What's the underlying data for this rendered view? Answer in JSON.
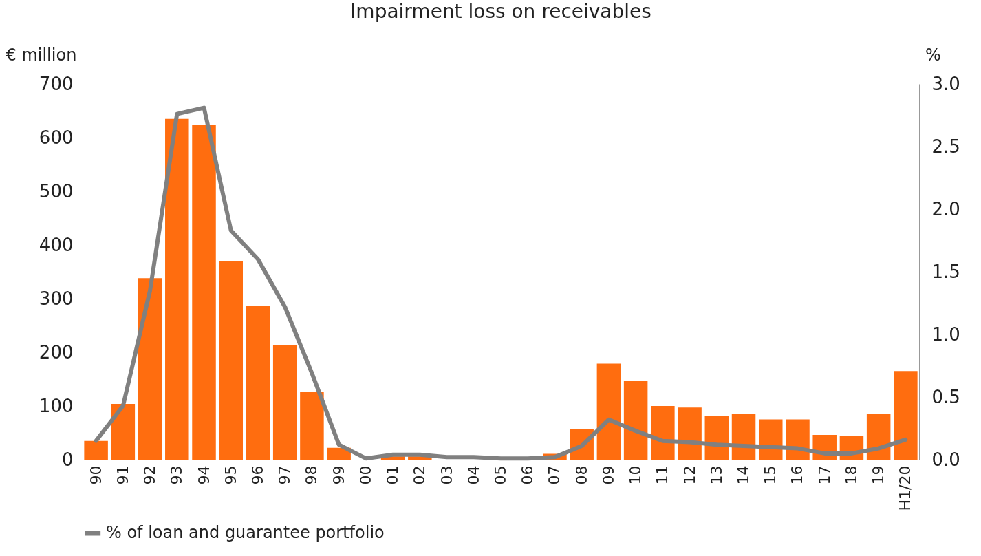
{
  "chart_data": {
    "type": "bar",
    "title": "Impairment loss on receivables",
    "ylabel": "€ million",
    "y2label": "%",
    "categories": [
      "90",
      "91",
      "92",
      "93",
      "94",
      "95",
      "96",
      "97",
      "98",
      "99",
      "00",
      "01",
      "02",
      "03",
      "04",
      "05",
      "06",
      "07",
      "08",
      "09",
      "10",
      "11",
      "12",
      "13",
      "14",
      "15",
      "16",
      "17",
      "18",
      "19",
      "H1/20"
    ],
    "series": [
      {
        "color": "#ff6d0f",
        "values": [
          35,
          104,
          338,
          635,
          623,
          370,
          286,
          213,
          127,
          22,
          null,
          6,
          6,
          null,
          null,
          null,
          null,
          11,
          57,
          179,
          147,
          100,
          97,
          81,
          86,
          75,
          75,
          46,
          44,
          85,
          165
        ]
      },
      {
        "type": "line",
        "name": "% of loan and guarantee portfolio",
        "color": "#808080",
        "axis": "y2",
        "values": [
          0.15,
          0.43,
          1.35,
          2.76,
          2.81,
          1.83,
          1.6,
          1.22,
          0.69,
          0.12,
          0.01,
          0.04,
          0.04,
          0.02,
          0.02,
          0.01,
          0.01,
          0.02,
          0.11,
          0.32,
          0.23,
          0.15,
          0.14,
          0.12,
          0.11,
          0.1,
          0.09,
          0.05,
          0.05,
          0.09,
          0.16
        ]
      }
    ],
    "ylim": [
      0,
      700
    ],
    "yticks": [
      0,
      100,
      200,
      300,
      400,
      500,
      600,
      700
    ],
    "y2lim": [
      0,
      3.0
    ],
    "y2ticks": [
      {
        "value": 0,
        "label": "0.0"
      },
      {
        "value": 0.5,
        "label": "0.5"
      },
      {
        "value": 1,
        "label": "1.0"
      },
      {
        "value": 1.5,
        "label": "1.5"
      },
      {
        "value": 2,
        "label": "2.0"
      },
      {
        "value": 2.5,
        "label": "2.5"
      },
      {
        "value": 3,
        "label": "3.0"
      }
    ],
    "legend": "bottom"
  }
}
